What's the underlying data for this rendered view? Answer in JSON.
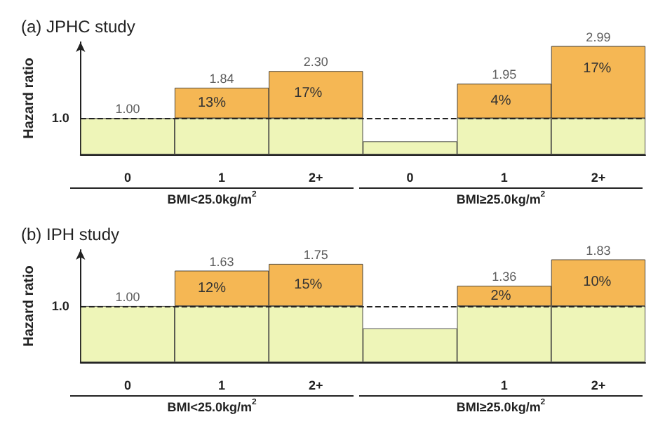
{
  "chart_data": [
    {
      "type": "bar",
      "title": "(a) JPHC study",
      "ylabel": "Hazard ratio",
      "categories": [
        "0",
        "1",
        "2+",
        "0",
        "1",
        "2+"
      ],
      "stacked": true,
      "series": [
        {
          "color": "#eef5b8",
          "values": [
            1,
            1,
            1,
            0.36,
            1,
            1
          ]
        },
        {
          "color": "#f5b754",
          "values": [
            null,
            0.84,
            1.3,
            null,
            0.95,
            1.99
          ]
        }
      ],
      "totals": [
        "1.00",
        "1.84",
        "2.30",
        null,
        "1.95",
        "2.99"
      ],
      "ylim": [
        0,
        3.1
      ],
      "yticks": [
        {
          "value": 1,
          "label": "1.0"
        }
      ],
      "ref_lines": [
        {
          "axis": "y",
          "value": 1,
          "line_style": "dashed"
        }
      ],
      "annotations": [
        "BMI<25.0kg/m$^{2}$",
        "BMI≥25.0kg/m$^{2}$",
        "13%",
        "17%",
        "4%",
        "17%"
      ]
    },
    {
      "type": "bar",
      "title": "(b) IPH study",
      "ylabel": "Hazard ratio",
      "categories": [
        "0",
        "1",
        "2+",
        null,
        "1",
        "2+"
      ],
      "stacked": true,
      "series": [
        {
          "color": "#eef5b8",
          "values": [
            1,
            1,
            1,
            0.6,
            1,
            1
          ]
        },
        {
          "color": "#f5b754",
          "values": [
            null,
            0.63,
            0.75,
            null,
            0.36,
            0.83
          ]
        }
      ],
      "totals": [
        "1.00",
        "1.63",
        "1.75",
        null,
        "1.36",
        "1.83"
      ],
      "ylim": [
        0,
        2.0
      ],
      "yticks": [
        {
          "value": 1,
          "label": "1.0"
        }
      ],
      "ref_lines": [
        {
          "axis": "y",
          "value": 1,
          "line_style": "dashed"
        }
      ],
      "annotations": [
        "BMI<25.0kg/m$^{2}$",
        "BMI≥25.0kg/m$^{2}$",
        "12%",
        "15%",
        "2%",
        "10%"
      ]
    }
  ]
}
